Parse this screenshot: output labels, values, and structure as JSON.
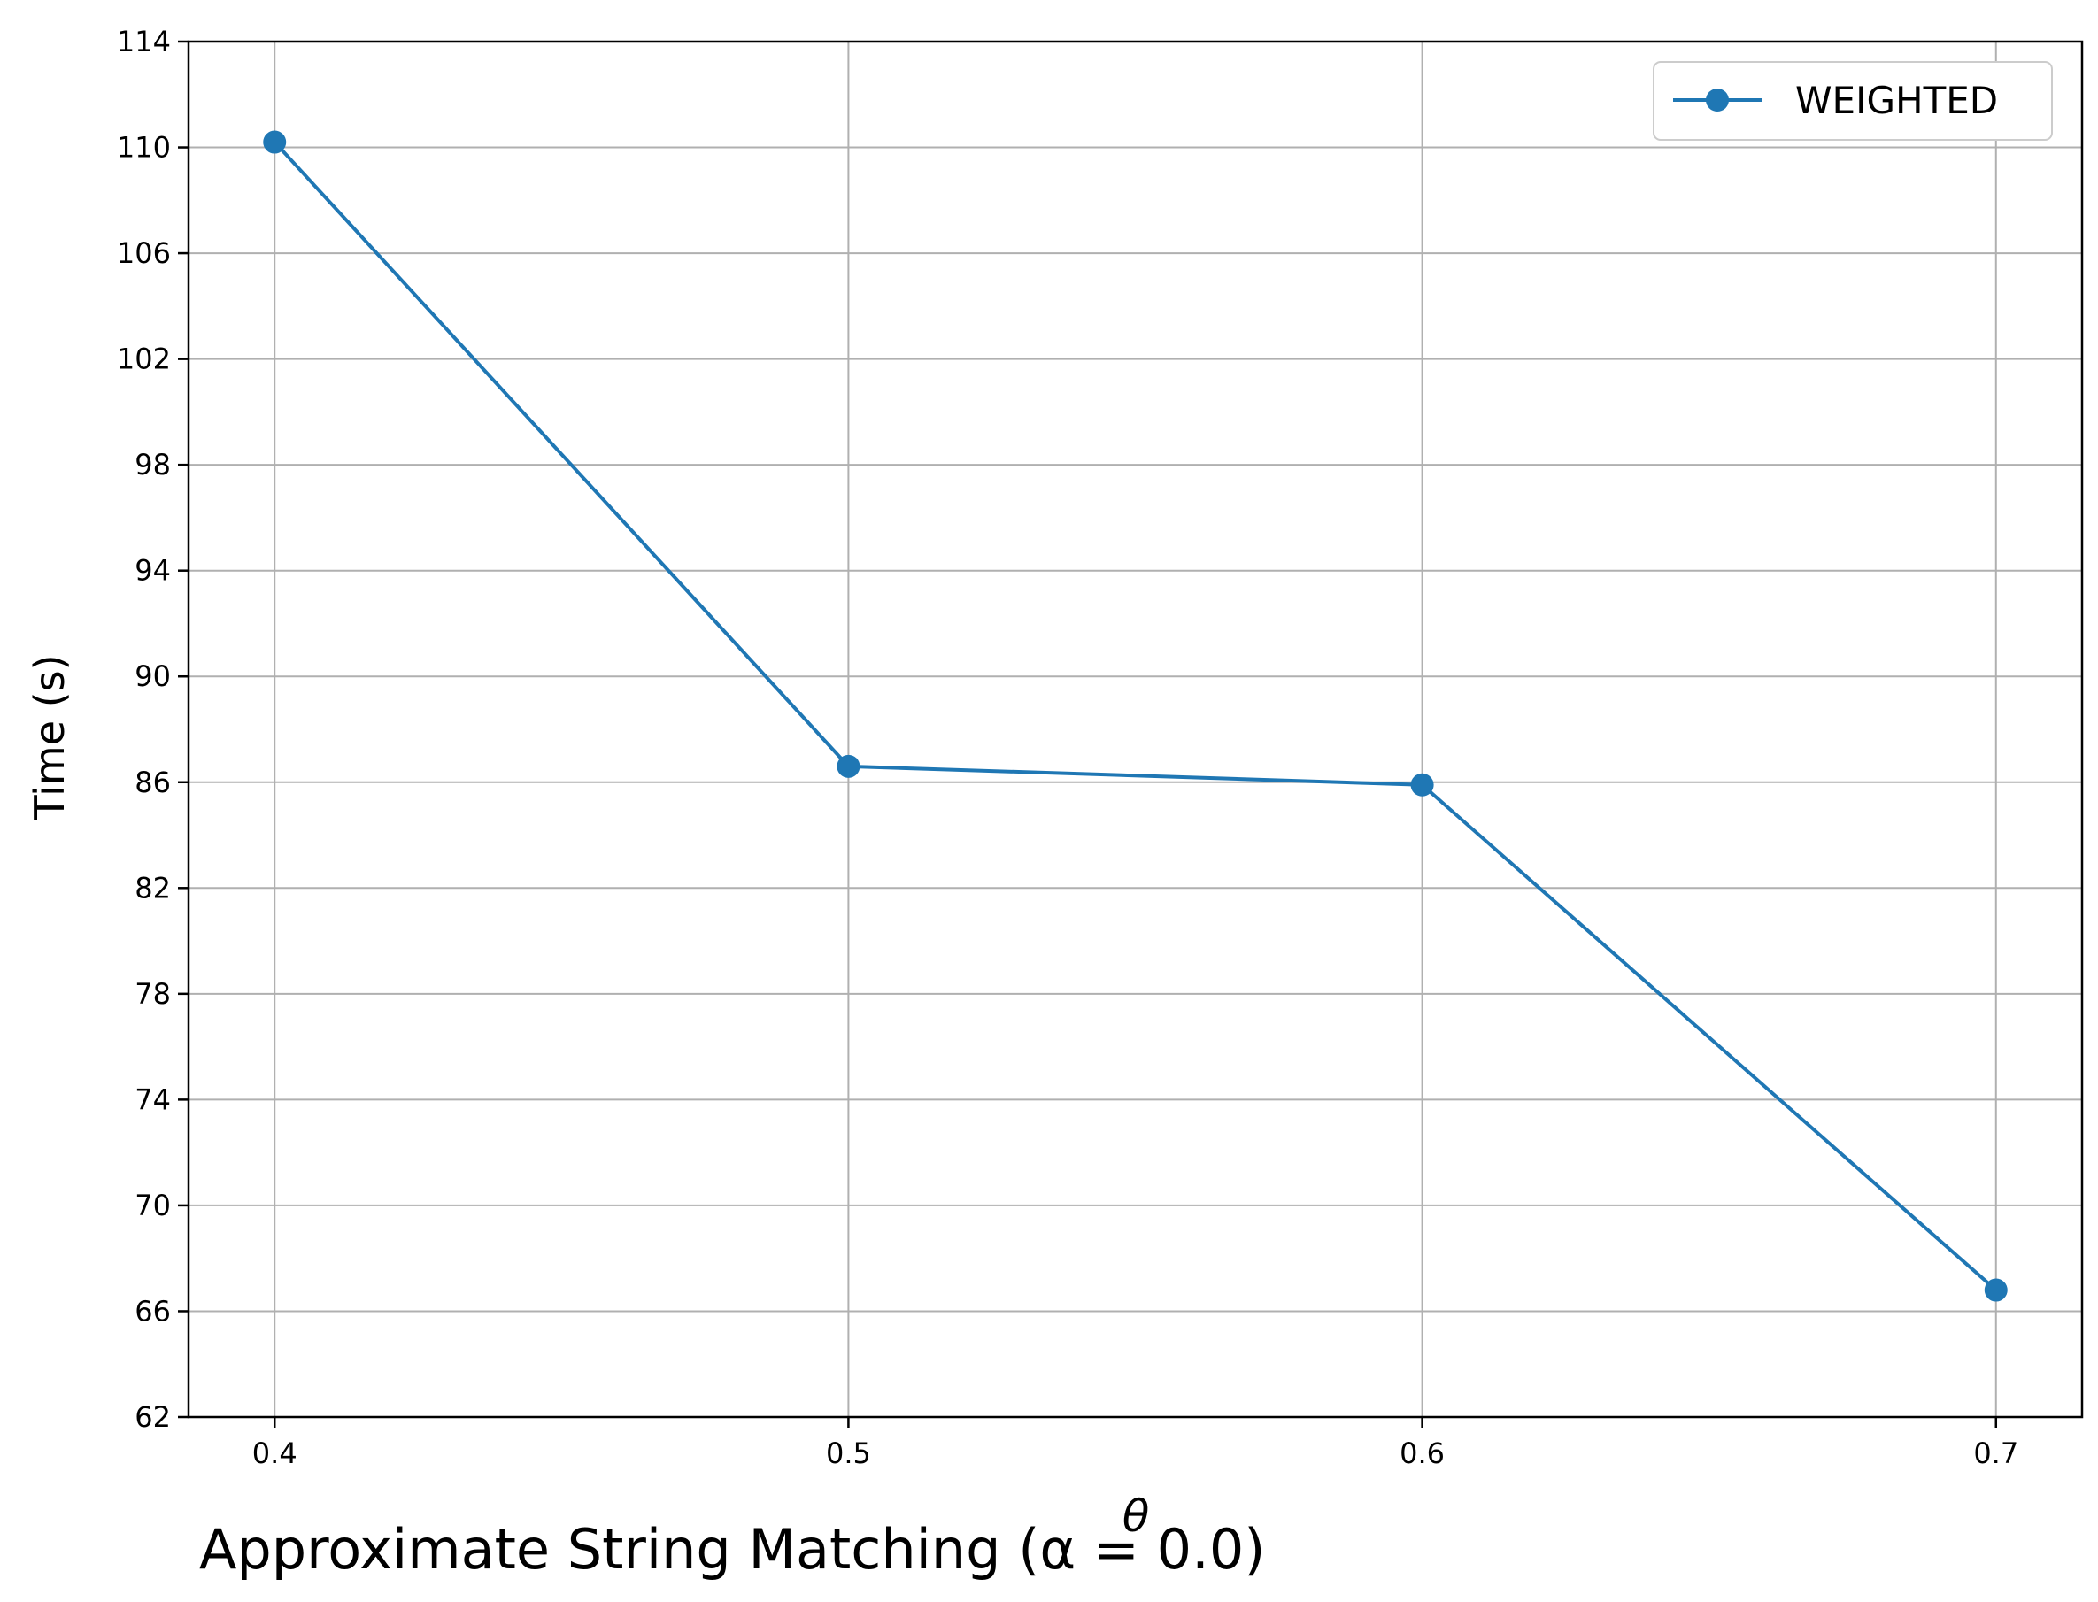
{
  "chart_data": {
    "type": "line",
    "x": [
      0.4,
      0.5,
      0.6,
      0.7
    ],
    "x_tick_labels": [
      "0.4",
      "0.5",
      "0.6",
      "0.7"
    ],
    "xlim": [
      0.385,
      0.715
    ],
    "xlabel": "θ",
    "ylabel": "Time (s)",
    "ylim": [
      62,
      114
    ],
    "y_ticks": [
      62,
      66,
      70,
      74,
      78,
      82,
      86,
      90,
      94,
      98,
      102,
      106,
      110,
      114
    ],
    "series": [
      {
        "name": "WEIGHTED",
        "values": [
          110.2,
          86.6,
          85.9,
          66.8
        ],
        "color": "#1f77b4",
        "marker": "circle"
      }
    ],
    "grid": true,
    "legend_position": "top-right",
    "caption": "Approximate String Matching (α = 0.0)"
  }
}
